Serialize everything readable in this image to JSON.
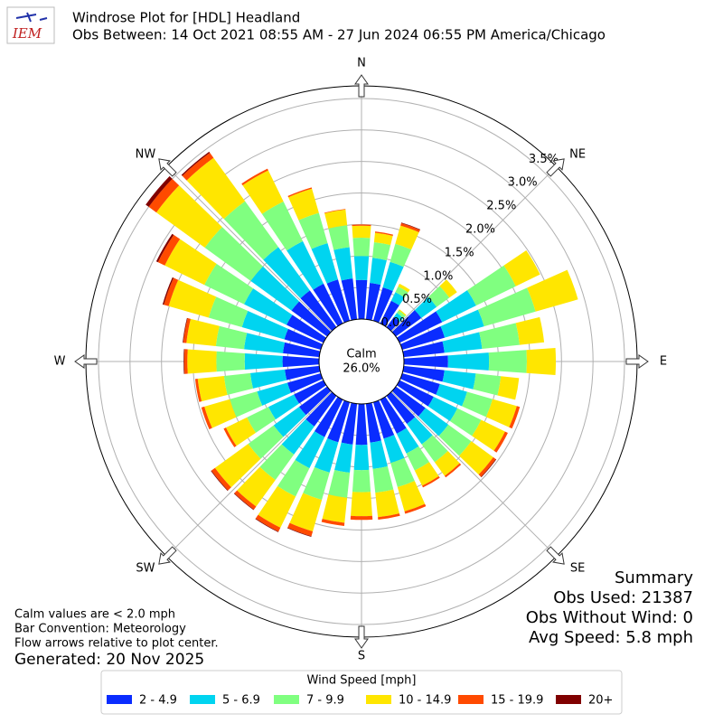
{
  "chart_data": {
    "type": "windrose",
    "title": "Windrose Plot for [HDL] Headland",
    "subtitle": "Obs Between: 14 Oct 2021 08:55 AM - 27 Jun 2024 06:55 PM America/Chicago",
    "logo_text": "IEM",
    "x": [
      0,
      10,
      20,
      30,
      40,
      50,
      60,
      70,
      80,
      90,
      100,
      110,
      120,
      130,
      140,
      150,
      160,
      170,
      180,
      190,
      200,
      210,
      220,
      230,
      240,
      250,
      260,
      270,
      280,
      290,
      300,
      310,
      320,
      330,
      340,
      350
    ],
    "xticks": [
      {
        "value": 0,
        "label": "N"
      },
      {
        "value": 45,
        "label": "NE"
      },
      {
        "value": 90,
        "label": "E"
      },
      {
        "value": 135,
        "label": "SE"
      },
      {
        "value": 180,
        "label": "S"
      },
      {
        "value": 225,
        "label": "SW"
      },
      {
        "value": 270,
        "label": "W"
      },
      {
        "value": 315,
        "label": "NW"
      }
    ],
    "rlim": [
      0,
      3.7
    ],
    "rticks": [
      {
        "value": 0,
        "label": "0.0%"
      },
      {
        "value": 0.5,
        "label": "0.5%"
      },
      {
        "value": 1,
        "label": "1.0%"
      },
      {
        "value": 1.5,
        "label": "1.5%"
      },
      {
        "value": 2,
        "label": "2.0%"
      },
      {
        "value": 2.5,
        "label": "2.5%"
      },
      {
        "value": 3,
        "label": "3.0%"
      },
      {
        "value": 3.5,
        "label": "3.5%"
      }
    ],
    "grid": true,
    "calm_label": "Calm",
    "calm_value": 26.0,
    "calm_value_label": "26.0%",
    "legend_title": "Wind Speed [mph]",
    "series": [
      {
        "name": "2 - 4.9",
        "color": "#0a2cff",
        "values": [
          0.62,
          0.58,
          0.55,
          0.4,
          0.2,
          0.5,
          0.75,
          0.7,
          0.65,
          0.7,
          0.65,
          0.62,
          0.6,
          0.58,
          0.55,
          0.6,
          0.6,
          0.62,
          0.65,
          0.65,
          0.66,
          0.66,
          0.6,
          0.55,
          0.52,
          0.55,
          0.55,
          0.58,
          0.58,
          0.6,
          0.65,
          0.7,
          0.72,
          0.7,
          0.68,
          0.65
        ]
      },
      {
        "name": "5 - 6.9",
        "color": "#00d4f0",
        "values": [
          0.38,
          0.4,
          0.42,
          0.15,
          0.08,
          0.3,
          0.6,
          0.65,
          0.6,
          0.65,
          0.5,
          0.45,
          0.42,
          0.45,
          0.4,
          0.35,
          0.4,
          0.42,
          0.4,
          0.45,
          0.5,
          0.55,
          0.55,
          0.5,
          0.45,
          0.5,
          0.55,
          0.6,
          0.62,
          0.7,
          0.75,
          0.8,
          0.85,
          0.75,
          0.6,
          0.5
        ]
      },
      {
        "name": "7 - 9.9",
        "color": "#80ff80",
        "values": [
          0.29,
          0.25,
          0.3,
          0.1,
          0.05,
          0.25,
          0.7,
          0.85,
          0.6,
          0.6,
          0.4,
          0.42,
          0.42,
          0.45,
          0.35,
          0.3,
          0.4,
          0.38,
          0.35,
          0.4,
          0.45,
          0.5,
          0.5,
          0.5,
          0.38,
          0.45,
          0.42,
          0.45,
          0.45,
          0.55,
          0.7,
          0.9,
          0.9,
          0.7,
          0.5,
          0.35
        ]
      },
      {
        "name": "10 - 14.9",
        "color": "#ffe600",
        "values": [
          0.19,
          0.15,
          0.3,
          0.05,
          0.02,
          0.15,
          0.43,
          0.7,
          0.39,
          0.46,
          0.29,
          0.4,
          0.42,
          0.43,
          0.27,
          0.27,
          0.4,
          0.39,
          0.38,
          0.4,
          0.52,
          0.55,
          0.52,
          0.65,
          0.37,
          0.42,
          0.42,
          0.46,
          0.47,
          0.66,
          0.7,
          0.95,
          0.85,
          0.55,
          0.4,
          0.25
        ]
      },
      {
        "name": "15 - 19.9",
        "color": "#ff4a00",
        "values": [
          0.02,
          0.02,
          0.04,
          0,
          0,
          0,
          0,
          0,
          0,
          0,
          0,
          0.05,
          0.05,
          0.05,
          0.03,
          0.03,
          0.04,
          0.04,
          0.06,
          0.05,
          0.08,
          0.07,
          0.06,
          0.07,
          0.04,
          0.05,
          0.04,
          0.05,
          0.05,
          0.08,
          0.12,
          0.15,
          0.1,
          0.03,
          0.02,
          0.01
        ]
      },
      {
        "name": "20+",
        "color": "#800000",
        "values": [
          0,
          0,
          0.01,
          0,
          0,
          0,
          0,
          0,
          0,
          0,
          0,
          0,
          0,
          0.01,
          0,
          0,
          0,
          0,
          0,
          0,
          0.01,
          0.01,
          0.01,
          0.01,
          0,
          0,
          0,
          0.01,
          0.01,
          0.02,
          0.03,
          0.06,
          0.02,
          0,
          0,
          0
        ]
      }
    ],
    "notes": [
      "Calm values are < 2.0 mph",
      "Bar Convention: Meteorology",
      "Flow arrows relative to plot center."
    ],
    "generated": "Generated: 20 Nov 2025",
    "summary": [
      "Summary",
      "Obs Used: 21387",
      "Obs Without Wind: 0",
      "Avg Speed: 5.8 mph"
    ]
  }
}
